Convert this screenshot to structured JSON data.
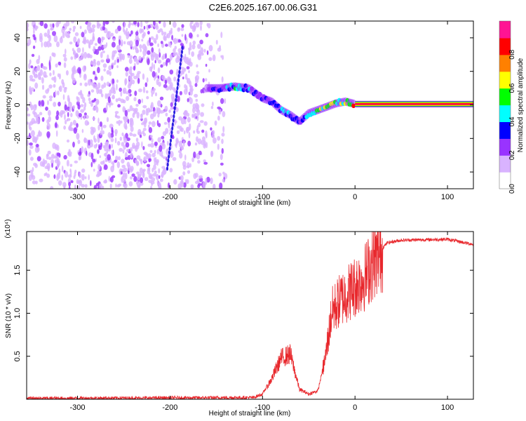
{
  "title": "C2E6.2025.167.00.06.G31",
  "chart_data": [
    {
      "type": "heatmap",
      "xlabel": "Height of straight line (km)",
      "ylabel": "Frequency (Hz)",
      "xlim": [
        -355,
        128
      ],
      "ylim": [
        -50,
        50
      ],
      "xticks": [
        -300,
        -200,
        -100,
        0,
        100
      ],
      "yticks": [
        -40,
        -20,
        0,
        20,
        40
      ],
      "colorbar": {
        "label": "Normalized spectral amplitude",
        "range": [
          0,
          1
        ],
        "ticks": [
          0.0,
          0.2,
          0.4,
          0.6,
          0.8
        ],
        "colors": [
          "#ffffff",
          "#d9b3ff",
          "#9933ff",
          "#0000ff",
          "#00ffff",
          "#00ff00",
          "#ffff00",
          "#ff8000",
          "#ff0000",
          "#ff1493"
        ]
      },
      "ridge": [
        {
          "x": -160,
          "y": 10,
          "amp": 0.3
        },
        {
          "x": -145,
          "y": 10,
          "amp": 0.45
        },
        {
          "x": -130,
          "y": 11,
          "amp": 0.6
        },
        {
          "x": -115,
          "y": 10,
          "amp": 0.55
        },
        {
          "x": -100,
          "y": 4,
          "amp": 0.4
        },
        {
          "x": -90,
          "y": 2,
          "amp": 0.45
        },
        {
          "x": -80,
          "y": -3,
          "amp": 0.5
        },
        {
          "x": -70,
          "y": -6,
          "amp": 0.5
        },
        {
          "x": -60,
          "y": -10,
          "amp": 0.4
        },
        {
          "x": -50,
          "y": -5,
          "amp": 0.5
        },
        {
          "x": -40,
          "y": -3,
          "amp": 0.7
        },
        {
          "x": -30,
          "y": -1,
          "amp": 0.75
        },
        {
          "x": -20,
          "y": 1,
          "amp": 0.8
        },
        {
          "x": -10,
          "y": 2,
          "amp": 0.85
        },
        {
          "x": 0,
          "y": 0.5,
          "amp": 1.0
        },
        {
          "x": 128,
          "y": 0.5,
          "amp": 1.0
        }
      ]
    },
    {
      "type": "line",
      "xlabel": "Height of straight line (km)",
      "ylabel": "SNR (10 * v/v)",
      "y_multiplier": "(x10⁴)",
      "xlim": [
        -355,
        128
      ],
      "ylim": [
        0,
        1.95
      ],
      "xticks": [
        -300,
        -200,
        -100,
        0,
        100
      ],
      "yticks": [
        0.5,
        1.0,
        1.5
      ],
      "ytick_labels": [
        "0.5",
        "1.0",
        "1.5"
      ],
      "color": "#e8282d",
      "envelope": [
        {
          "x": -355,
          "y": 0.01
        },
        {
          "x": -110,
          "y": 0.02
        },
        {
          "x": -100,
          "y": 0.06
        },
        {
          "x": -90,
          "y": 0.25
        },
        {
          "x": -80,
          "y": 0.5
        },
        {
          "x": -70,
          "y": 0.55
        },
        {
          "x": -60,
          "y": 0.12
        },
        {
          "x": -50,
          "y": 0.06
        },
        {
          "x": -40,
          "y": 0.1
        },
        {
          "x": -32,
          "y": 0.5
        },
        {
          "x": -25,
          "y": 1.05
        },
        {
          "x": -15,
          "y": 1.2
        },
        {
          "x": 0,
          "y": 1.35
        },
        {
          "x": 10,
          "y": 1.45
        },
        {
          "x": 20,
          "y": 1.65
        },
        {
          "x": 35,
          "y": 1.82
        },
        {
          "x": 50,
          "y": 1.85
        },
        {
          "x": 100,
          "y": 1.86
        },
        {
          "x": 128,
          "y": 1.8
        }
      ]
    }
  ]
}
